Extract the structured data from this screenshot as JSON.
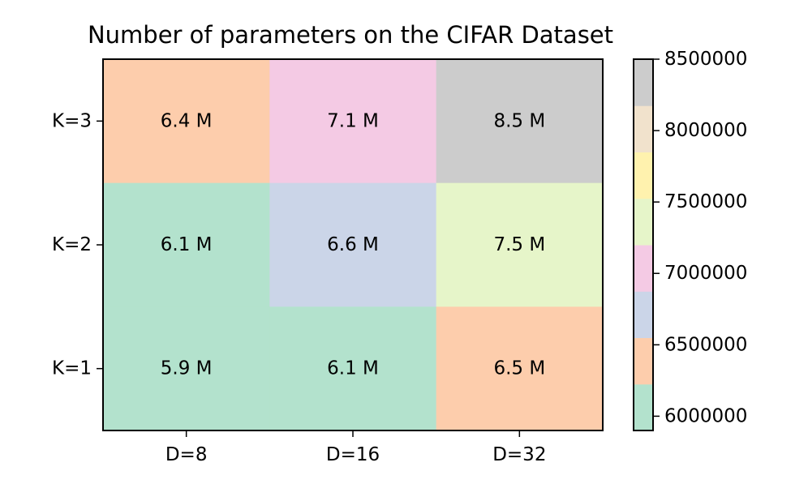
{
  "chart_data": {
    "type": "heatmap",
    "title": "Number of parameters on the CIFAR Dataset",
    "xlabel": "",
    "ylabel": "",
    "x_categories": [
      "D=8",
      "D=16",
      "D=32"
    ],
    "y_categories": [
      "K=3",
      "K=2",
      "K=1"
    ],
    "values": [
      [
        6400000,
        7100000,
        8500000
      ],
      [
        6100000,
        6600000,
        7500000
      ],
      [
        5900000,
        6100000,
        6500000
      ]
    ],
    "cell_labels": [
      [
        "6.4 M",
        "7.1 M",
        "8.5 M"
      ],
      [
        "6.1 M",
        "6.6 M",
        "7.5 M"
      ],
      [
        "5.9 M",
        "6.1 M",
        "6.5 M"
      ]
    ],
    "colorbar": {
      "vmin": 5900000,
      "vmax": 8500000,
      "ticks": [
        6000000,
        6500000,
        7000000,
        7500000,
        8000000,
        8500000
      ],
      "tick_labels": [
        "6000000",
        "6500000",
        "7000000",
        "7500000",
        "8000000",
        "8500000"
      ],
      "colors": [
        "#b3e2cd",
        "#fdcdac",
        "#cbd5e8",
        "#f4cae4",
        "#e6f5c9",
        "#fff2ae",
        "#f1e2cc",
        "#cccccc"
      ],
      "placement": "right"
    },
    "grid": false
  }
}
